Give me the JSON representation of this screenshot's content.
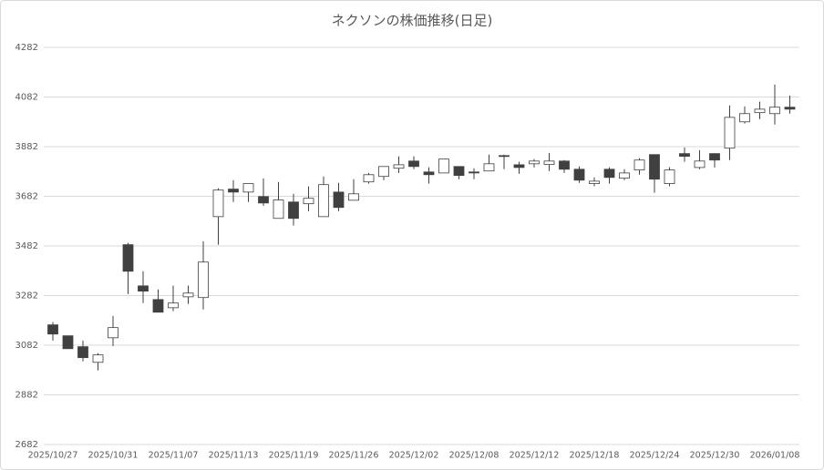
{
  "chart_data": {
    "type": "candlestick",
    "title": "ネクソンの株価推移(日足)",
    "categories": [
      "2025/10/27",
      null,
      null,
      null,
      "2025/10/31",
      null,
      null,
      null,
      "2025/11/07",
      null,
      null,
      null,
      "2025/11/13",
      null,
      null,
      null,
      "2025/11/19",
      null,
      null,
      null,
      "2025/11/26",
      null,
      null,
      null,
      "2025/12/02",
      null,
      null,
      null,
      "2025/12/08",
      null,
      null,
      null,
      "2025/12/12",
      null,
      null,
      null,
      "2025/12/18",
      null,
      null,
      null,
      "2025/12/24",
      null,
      null,
      null,
      "2025/12/30",
      null,
      null,
      null,
      "2026/01/08",
      null
    ],
    "open": [
      3164,
      3120,
      3076,
      3013,
      3112,
      3487,
      3321,
      3266,
      3233,
      3277,
      3274,
      3600,
      3711,
      3699,
      3681,
      3593,
      3659,
      3652,
      3600,
      3699,
      3666,
      3740,
      3762,
      3795,
      3824,
      3780,
      3776,
      3802,
      3780,
      3784,
      3846,
      3809,
      3813,
      3810,
      3824,
      3791,
      3733,
      3791,
      3755,
      3788,
      3850,
      3733,
      3854,
      3798,
      3854,
      3876,
      3982,
      4019,
      4015,
      4041
    ],
    "high": [
      3175,
      3120,
      3101,
      3050,
      3200,
      3494,
      3380,
      3307,
      3322,
      3322,
      3501,
      3714,
      3747,
      3733,
      3754,
      3740,
      3692,
      3722,
      3762,
      3736,
      3751,
      3776,
      3802,
      3843,
      3843,
      3799,
      3832,
      3802,
      3795,
      3850,
      3850,
      3821,
      3832,
      3857,
      3828,
      3802,
      3758,
      3799,
      3791,
      3835,
      3850,
      3799,
      3879,
      3868,
      3854,
      4048,
      4044,
      4063,
      4132,
      4088
    ],
    "low": [
      3101,
      3068,
      3017,
      2980,
      3079,
      3288,
      3252,
      3215,
      3219,
      3248,
      3226,
      3487,
      3659,
      3659,
      3644,
      3593,
      3564,
      3622,
      3600,
      3622,
      3666,
      3733,
      3747,
      3776,
      3791,
      3733,
      3776,
      3751,
      3751,
      3784,
      3791,
      3773,
      3798,
      3784,
      3776,
      3736,
      3722,
      3733,
      3747,
      3769,
      3696,
      3722,
      3821,
      3791,
      3798,
      3828,
      3975,
      3993,
      3971,
      4015
    ],
    "close": [
      3127,
      3068,
      3032,
      3043,
      3153,
      3380,
      3300,
      3215,
      3252,
      3292,
      3417,
      3707,
      3699,
      3733,
      3655,
      3667,
      3593,
      3674,
      3729,
      3637,
      3692,
      3769,
      3802,
      3809,
      3802,
      3769,
      3832,
      3766,
      3776,
      3813,
      3843,
      3798,
      3824,
      3824,
      3791,
      3747,
      3743,
      3758,
      3776,
      3828,
      3751,
      3788,
      3843,
      3824,
      3828,
      4000,
      4015,
      4033,
      4041,
      4033
    ],
    "up_color": "#ffffff",
    "down_color": "#404040",
    "line_color": "#404040",
    "ylim": [
      2682,
      4282
    ],
    "yticks": [
      2682,
      2882,
      3082,
      3282,
      3482,
      3682,
      3882,
      4082,
      4282
    ],
    "grid": true
  }
}
